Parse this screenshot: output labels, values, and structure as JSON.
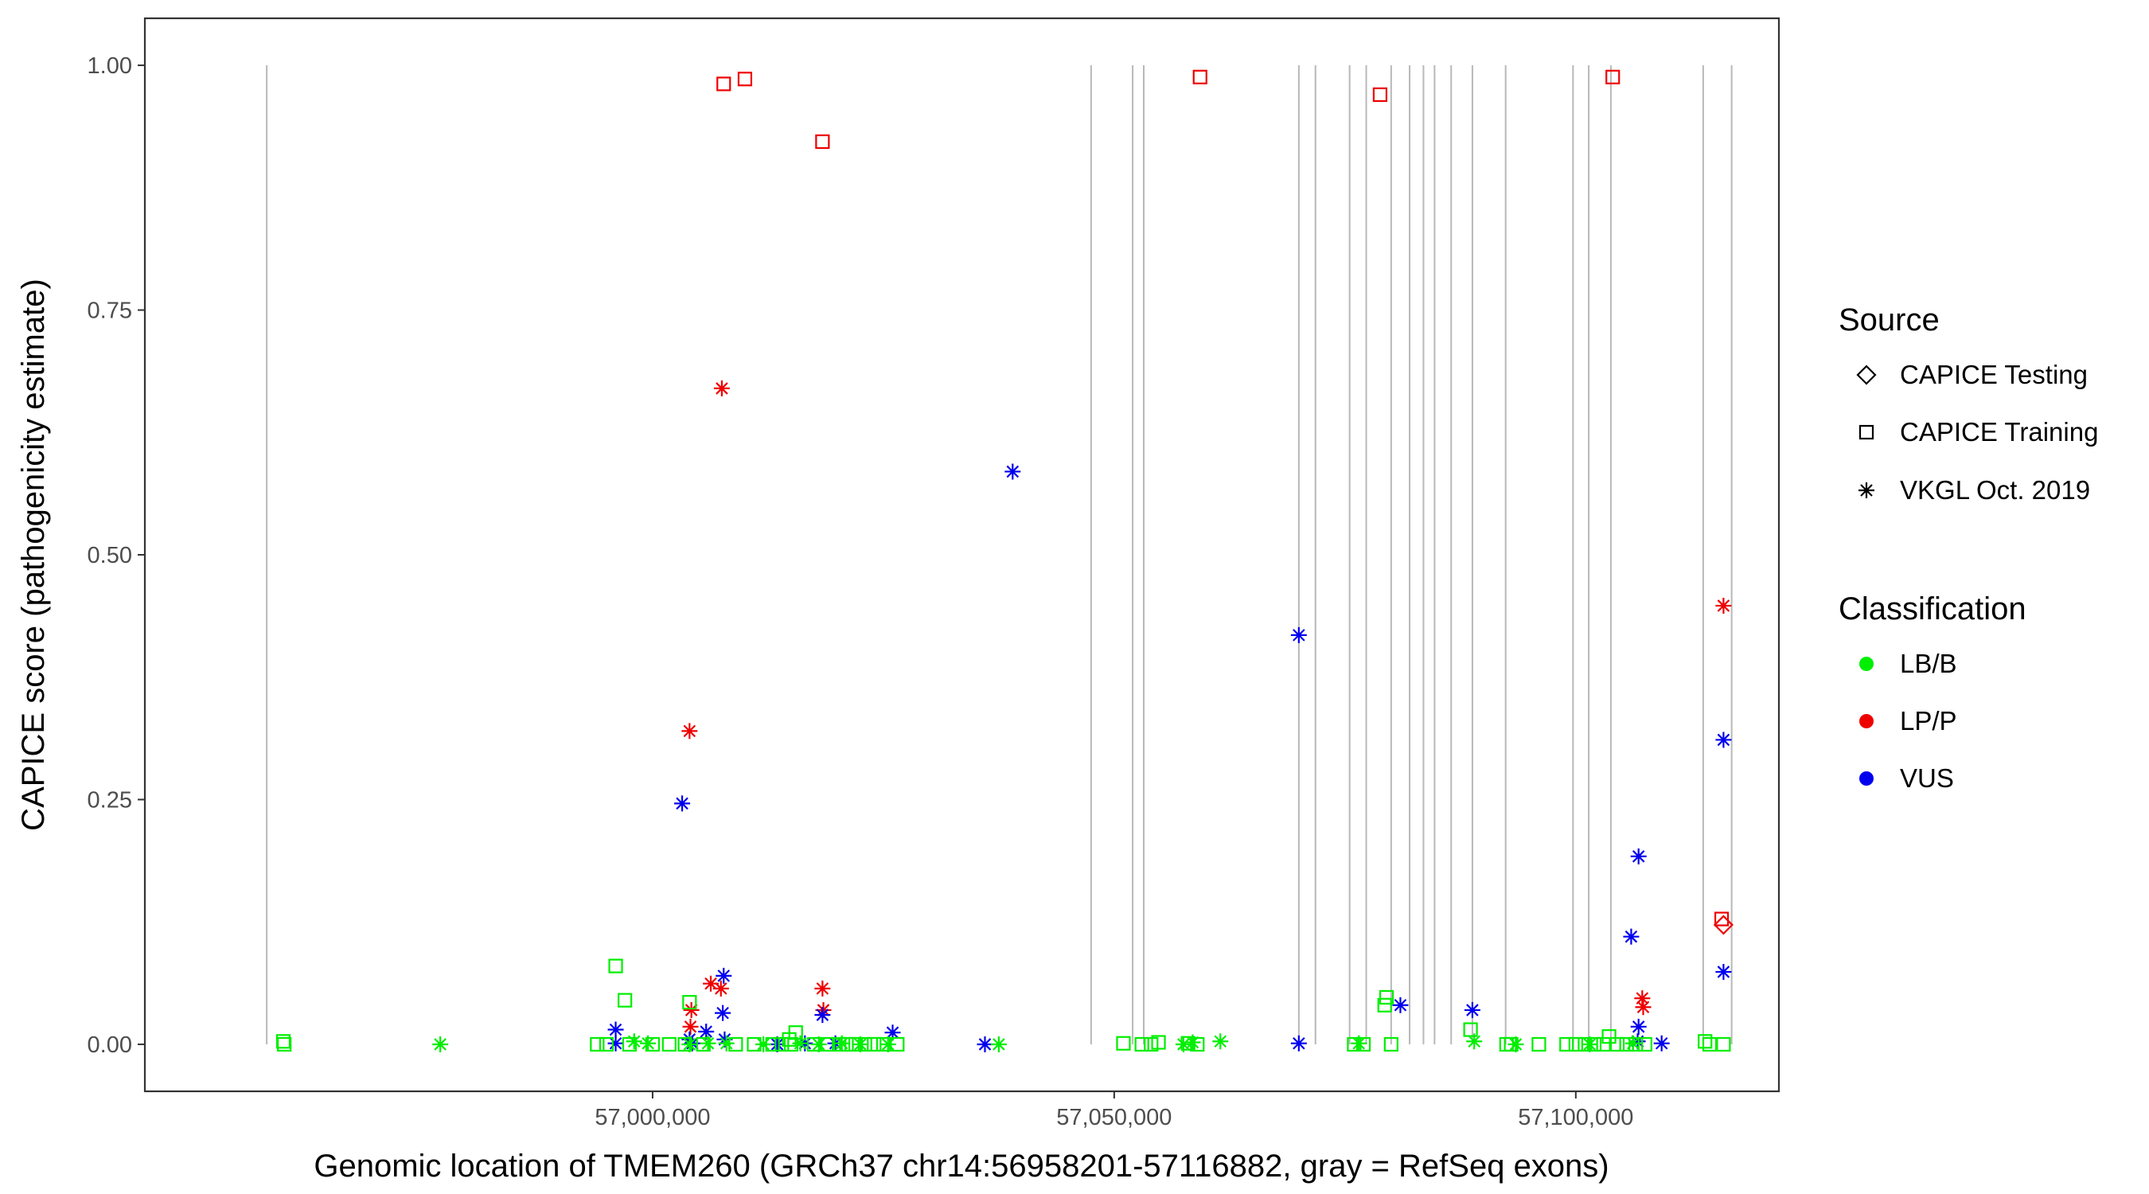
{
  "chart_data": {
    "type": "scatter",
    "title": "",
    "xlabel": "Genomic location of TMEM260 (GRCh37 chr14:56958201-57116882, gray = RefSeq exons)",
    "ylabel": "CAPICE score (pathogenicity estimate)",
    "xlim": [
      56945000,
      57122000
    ],
    "ylim": [
      -0.048,
      1.048
    ],
    "x_ticks": [
      {
        "value": 57000000,
        "label": "57,000,000"
      },
      {
        "value": 57050000,
        "label": "57,050,000"
      },
      {
        "value": 57100000,
        "label": "57,100,000"
      }
    ],
    "y_ticks": [
      {
        "value": 0.0,
        "label": "0.00"
      },
      {
        "value": 0.25,
        "label": "0.25"
      },
      {
        "value": 0.5,
        "label": "0.50"
      },
      {
        "value": 0.75,
        "label": "0.75"
      },
      {
        "value": 1.0,
        "label": "1.00"
      }
    ],
    "exons": [
      56958201,
      57047500,
      57052000,
      57053200,
      57070000,
      57071800,
      57075500,
      57077300,
      57080000,
      57082000,
      57083500,
      57084700,
      57086500,
      57088800,
      57092400,
      57099700,
      57101400,
      57103800,
      57113800,
      57116882
    ],
    "colors": {
      "LB/B": "#00ee00",
      "LP/P": "#ee0000",
      "VUS": "#0000ee",
      "exon": "#b8b8b8"
    },
    "legend": {
      "source_title": "Source",
      "source_items": [
        {
          "label": "CAPICE Testing",
          "shape": "diamond"
        },
        {
          "label": "CAPICE Training",
          "shape": "square"
        },
        {
          "label": "VKGL Oct. 2019",
          "shape": "asterisk"
        }
      ],
      "class_title": "Classification",
      "class_items": [
        {
          "label": "LB/B",
          "color": "#00ee00"
        },
        {
          "label": "LP/P",
          "color": "#ee0000"
        },
        {
          "label": "VUS",
          "color": "#0000ee"
        }
      ]
    },
    "series": [
      {
        "name": "CAPICE Training LP/P",
        "shape": "square",
        "class": "LP/P",
        "points": [
          [
            57007700,
            0.981
          ],
          [
            57010000,
            0.986
          ],
          [
            57018400,
            0.922
          ],
          [
            57059300,
            0.988
          ],
          [
            57078800,
            0.97
          ],
          [
            57104000,
            0.988
          ],
          [
            57115800,
            0.128
          ]
        ]
      },
      {
        "name": "VKGL LP/P",
        "shape": "asterisk",
        "class": "LP/P",
        "points": [
          [
            57007500,
            0.67
          ],
          [
            57004000,
            0.32
          ],
          [
            57004200,
            0.035
          ],
          [
            57004100,
            0.018
          ],
          [
            57006300,
            0.062
          ],
          [
            57007400,
            0.057
          ],
          [
            57018400,
            0.057
          ],
          [
            57018500,
            0.035
          ],
          [
            57107200,
            0.047
          ],
          [
            57107300,
            0.038
          ],
          [
            57116000,
            0.448
          ]
        ]
      },
      {
        "name": "CAPICE Testing LP/P",
        "shape": "diamond",
        "class": "LP/P",
        "points": [
          [
            57116000,
            0.122
          ]
        ]
      },
      {
        "name": "VKGL VUS",
        "shape": "asterisk",
        "class": "VUS",
        "points": [
          [
            57039000,
            0.585
          ],
          [
            57003200,
            0.246
          ],
          [
            57070000,
            0.418
          ],
          [
            57116000,
            0.311
          ],
          [
            57106800,
            0.192
          ],
          [
            57106000,
            0.11
          ],
          [
            57116000,
            0.074
          ],
          [
            57007700,
            0.07
          ],
          [
            57007600,
            0.032
          ],
          [
            57018400,
            0.03
          ],
          [
            57026000,
            0.012
          ],
          [
            56996000,
            0.015
          ],
          [
            57004000,
            0.005
          ],
          [
            57005800,
            0.013
          ],
          [
            57007800,
            0.005
          ],
          [
            57081000,
            0.04
          ],
          [
            57088800,
            0.035
          ],
          [
            57106800,
            0.018
          ],
          [
            57106700,
            0.003
          ],
          [
            57109300,
            0.001
          ],
          [
            57036000,
            0.0
          ],
          [
            57070000,
            0.001
          ],
          [
            57016500,
            0.001
          ],
          [
            57019800,
            0.001
          ],
          [
            57013500,
            0.0
          ],
          [
            56996000,
            0.001
          ],
          [
            57004300,
            0.001
          ]
        ]
      },
      {
        "name": "CAPICE Training LB/B",
        "shape": "square",
        "class": "LB/B",
        "points": [
          [
            56960000,
            0.003
          ],
          [
            56960100,
            0.0
          ],
          [
            56996000,
            0.08
          ],
          [
            56997000,
            0.045
          ],
          [
            57004000,
            0.043
          ],
          [
            57079500,
            0.048
          ],
          [
            57079300,
            0.04
          ],
          [
            57088600,
            0.015
          ],
          [
            57015500,
            0.012
          ],
          [
            57014800,
            0.005
          ],
          [
            57103600,
            0.008
          ],
          [
            57114000,
            0.003
          ],
          [
            56994000,
            0.0
          ],
          [
            56995000,
            0.0
          ],
          [
            56997500,
            0.0
          ],
          [
            57000000,
            0.0
          ],
          [
            57001800,
            0.0
          ],
          [
            57003500,
            0.0
          ],
          [
            57005500,
            0.0
          ],
          [
            57009000,
            0.0
          ],
          [
            57011000,
            0.0
          ],
          [
            57013000,
            0.0
          ],
          [
            57014000,
            0.0
          ],
          [
            57015000,
            0.0
          ],
          [
            57017500,
            0.0
          ],
          [
            57019000,
            0.0
          ],
          [
            57020200,
            0.0
          ],
          [
            57021000,
            0.0
          ],
          [
            57022000,
            0.0
          ],
          [
            57023000,
            0.0
          ],
          [
            57024000,
            0.0
          ],
          [
            57025000,
            0.0
          ],
          [
            57026500,
            0.0
          ],
          [
            57051000,
            0.001
          ],
          [
            57053000,
            0.0
          ],
          [
            57054000,
            0.0
          ],
          [
            57054800,
            0.002
          ],
          [
            57058000,
            0.001
          ],
          [
            57059000,
            0.0
          ],
          [
            57076000,
            0.0
          ],
          [
            57077000,
            0.0
          ],
          [
            57080000,
            0.0
          ],
          [
            57092500,
            0.0
          ],
          [
            57093000,
            0.0
          ],
          [
            57096000,
            0.0
          ],
          [
            57099000,
            0.0
          ],
          [
            57100000,
            0.0
          ],
          [
            57101000,
            0.0
          ],
          [
            57102000,
            0.0
          ],
          [
            57103000,
            0.0
          ],
          [
            57104500,
            0.0
          ],
          [
            57105500,
            0.0
          ],
          [
            57106500,
            0.0
          ],
          [
            57107500,
            0.0
          ],
          [
            57114500,
            0.0
          ],
          [
            57116000,
            0.0
          ]
        ]
      },
      {
        "name": "VKGL LB/B",
        "shape": "asterisk",
        "class": "LB/B",
        "points": [
          [
            56977000,
            0.0
          ],
          [
            56998000,
            0.003
          ],
          [
            56999500,
            0.001
          ],
          [
            57004000,
            0.0
          ],
          [
            57006000,
            0.001
          ],
          [
            57008000,
            0.001
          ],
          [
            57012000,
            0.0
          ],
          [
            57016000,
            0.001
          ],
          [
            57018000,
            0.0
          ],
          [
            57020500,
            0.001
          ],
          [
            57022500,
            0.0
          ],
          [
            57025500,
            0.0
          ],
          [
            57037500,
            0.0
          ],
          [
            57057500,
            0.0
          ],
          [
            57058500,
            0.002
          ],
          [
            57061500,
            0.003
          ],
          [
            57076500,
            0.001
          ],
          [
            57089000,
            0.003
          ],
          [
            57093500,
            0.0
          ],
          [
            57101500,
            0.0
          ],
          [
            57106200,
            0.001
          ]
        ]
      }
    ]
  }
}
